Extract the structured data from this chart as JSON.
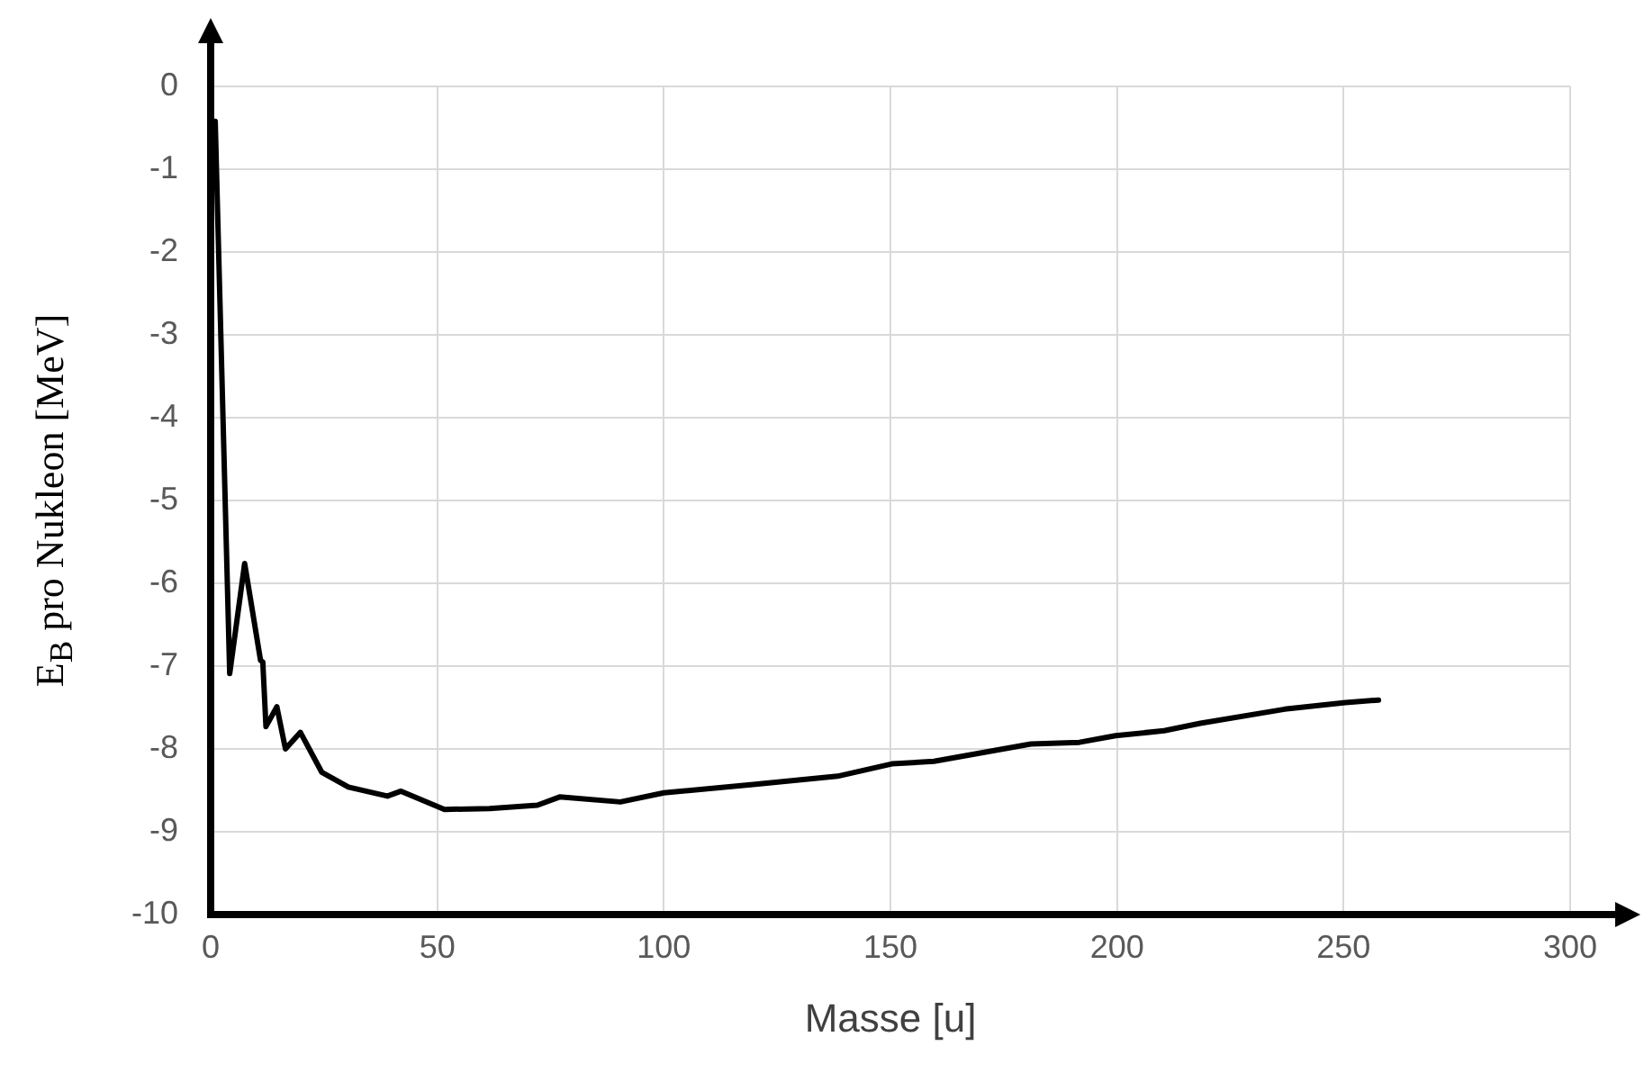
{
  "chart_data": {
    "type": "line",
    "xlabel": "Masse [u]",
    "ylabel": "E$_{B}$ pro Nukleon [MeV]",
    "xlim": [
      0,
      300
    ],
    "xticks": [
      0,
      50,
      100,
      150,
      200,
      250,
      300
    ],
    "ylim": [
      -10,
      0
    ],
    "yticks": [
      -10,
      -9,
      -8,
      -7,
      -6,
      -5,
      -4,
      -3,
      -2,
      -1,
      0
    ],
    "grid": true,
    "marker": "none",
    "line_style": "solid",
    "series": [
      {
        "color": "#000000",
        "x": [
          1,
          4.2,
          7.5,
          11,
          11.5,
          12.2,
          14.6,
          16.5,
          19.8,
          24.5,
          30.4,
          39,
          42,
          51.6,
          61.5,
          72.1,
          77,
          90.4,
          100,
          119.7,
          138.3,
          150.3,
          159.6,
          181,
          191.7,
          199.7,
          210.4,
          218.4,
          237,
          250.4,
          257.7
        ],
        "values": [
          -0.42,
          -7.09,
          -5.76,
          -6.93,
          -6.95,
          -7.73,
          -7.49,
          -8.0,
          -7.8,
          -8.28,
          -8.46,
          -8.57,
          -8.51,
          -8.73,
          -8.72,
          -8.68,
          -8.58,
          -8.64,
          -8.53,
          -8.43,
          -8.33,
          -8.18,
          -8.15,
          -7.94,
          -7.92,
          -7.84,
          -7.78,
          -7.69,
          -7.52,
          -7.44,
          -7.41
        ]
      }
    ]
  }
}
